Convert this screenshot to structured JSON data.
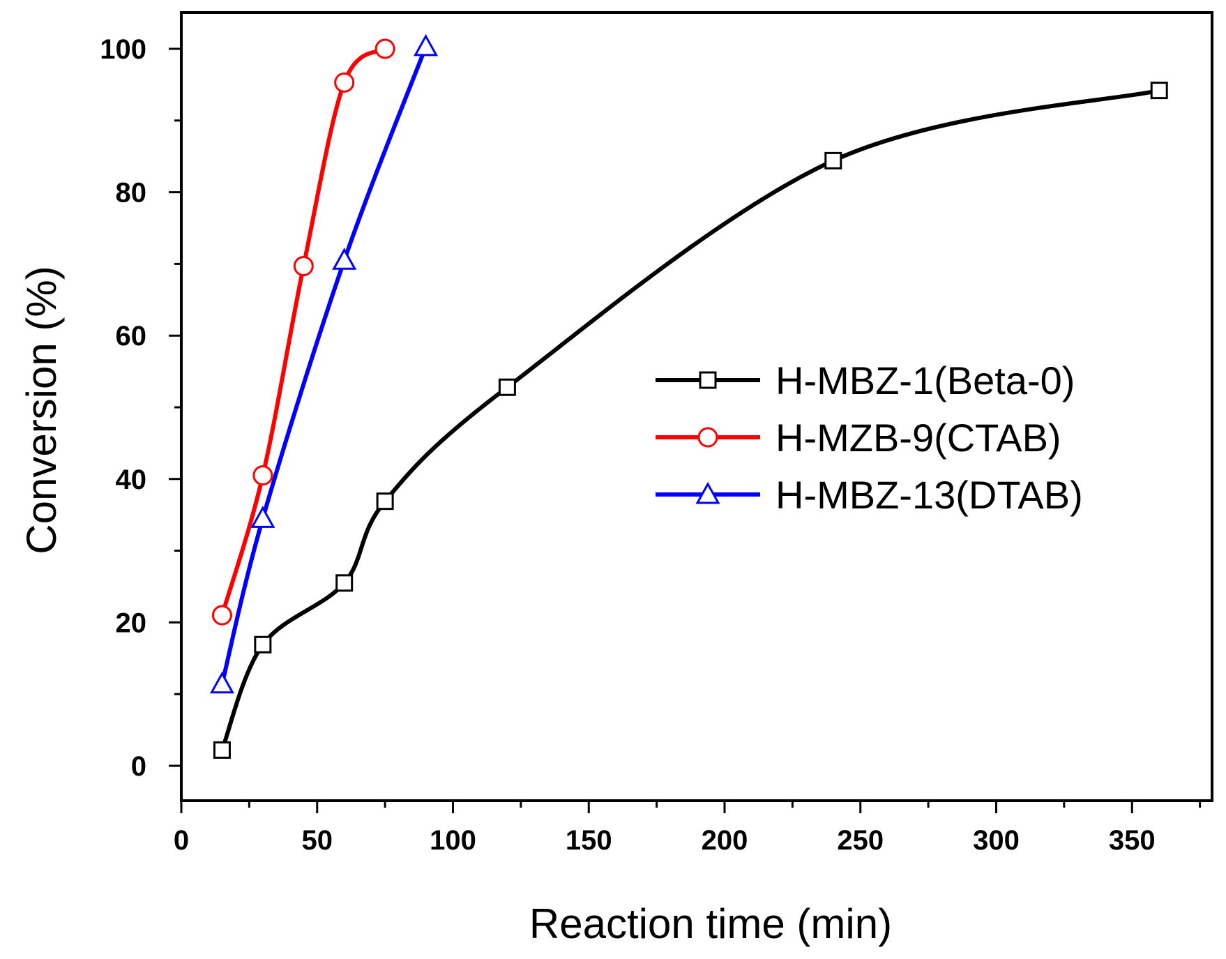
{
  "chart_data": {
    "type": "line",
    "title": "",
    "xlabel": "Reaction time (min)",
    "ylabel": "Conversion (%)",
    "xlim": [
      0,
      380
    ],
    "ylim": [
      -5,
      105
    ],
    "xticks": [
      0,
      50,
      100,
      150,
      200,
      250,
      300,
      350
    ],
    "xtick_labels": [
      "0",
      "50",
      "100",
      "150",
      "200",
      "250",
      "300",
      "350"
    ],
    "yticks": [
      0,
      20,
      40,
      60,
      80,
      100
    ],
    "ytick_labels": [
      "0",
      "20",
      "40",
      "60",
      "80",
      "100"
    ],
    "grid": false,
    "legend_position": "center-right",
    "series": [
      {
        "name": "H-MBZ-1(Beta-0)",
        "color": "#000000",
        "marker": "square",
        "x": [
          15,
          30,
          60,
          75,
          120,
          240,
          360
        ],
        "y": [
          2.2,
          16.9,
          25.5,
          36.9,
          52.8,
          84.4,
          94.2
        ]
      },
      {
        "name": "H-MZB-9(CTAB)",
        "color": "#ff0000",
        "marker": "circle",
        "x": [
          15,
          30,
          45,
          60,
          75
        ],
        "y": [
          21.0,
          40.5,
          69.7,
          95.3,
          100.0
        ]
      },
      {
        "name": "H-MBZ-13(DTAB)",
        "color": "#0000ff",
        "marker": "triangle",
        "x": [
          15,
          30,
          60,
          90
        ],
        "y": [
          11.4,
          34.5,
          70.5,
          100.3
        ]
      }
    ]
  }
}
